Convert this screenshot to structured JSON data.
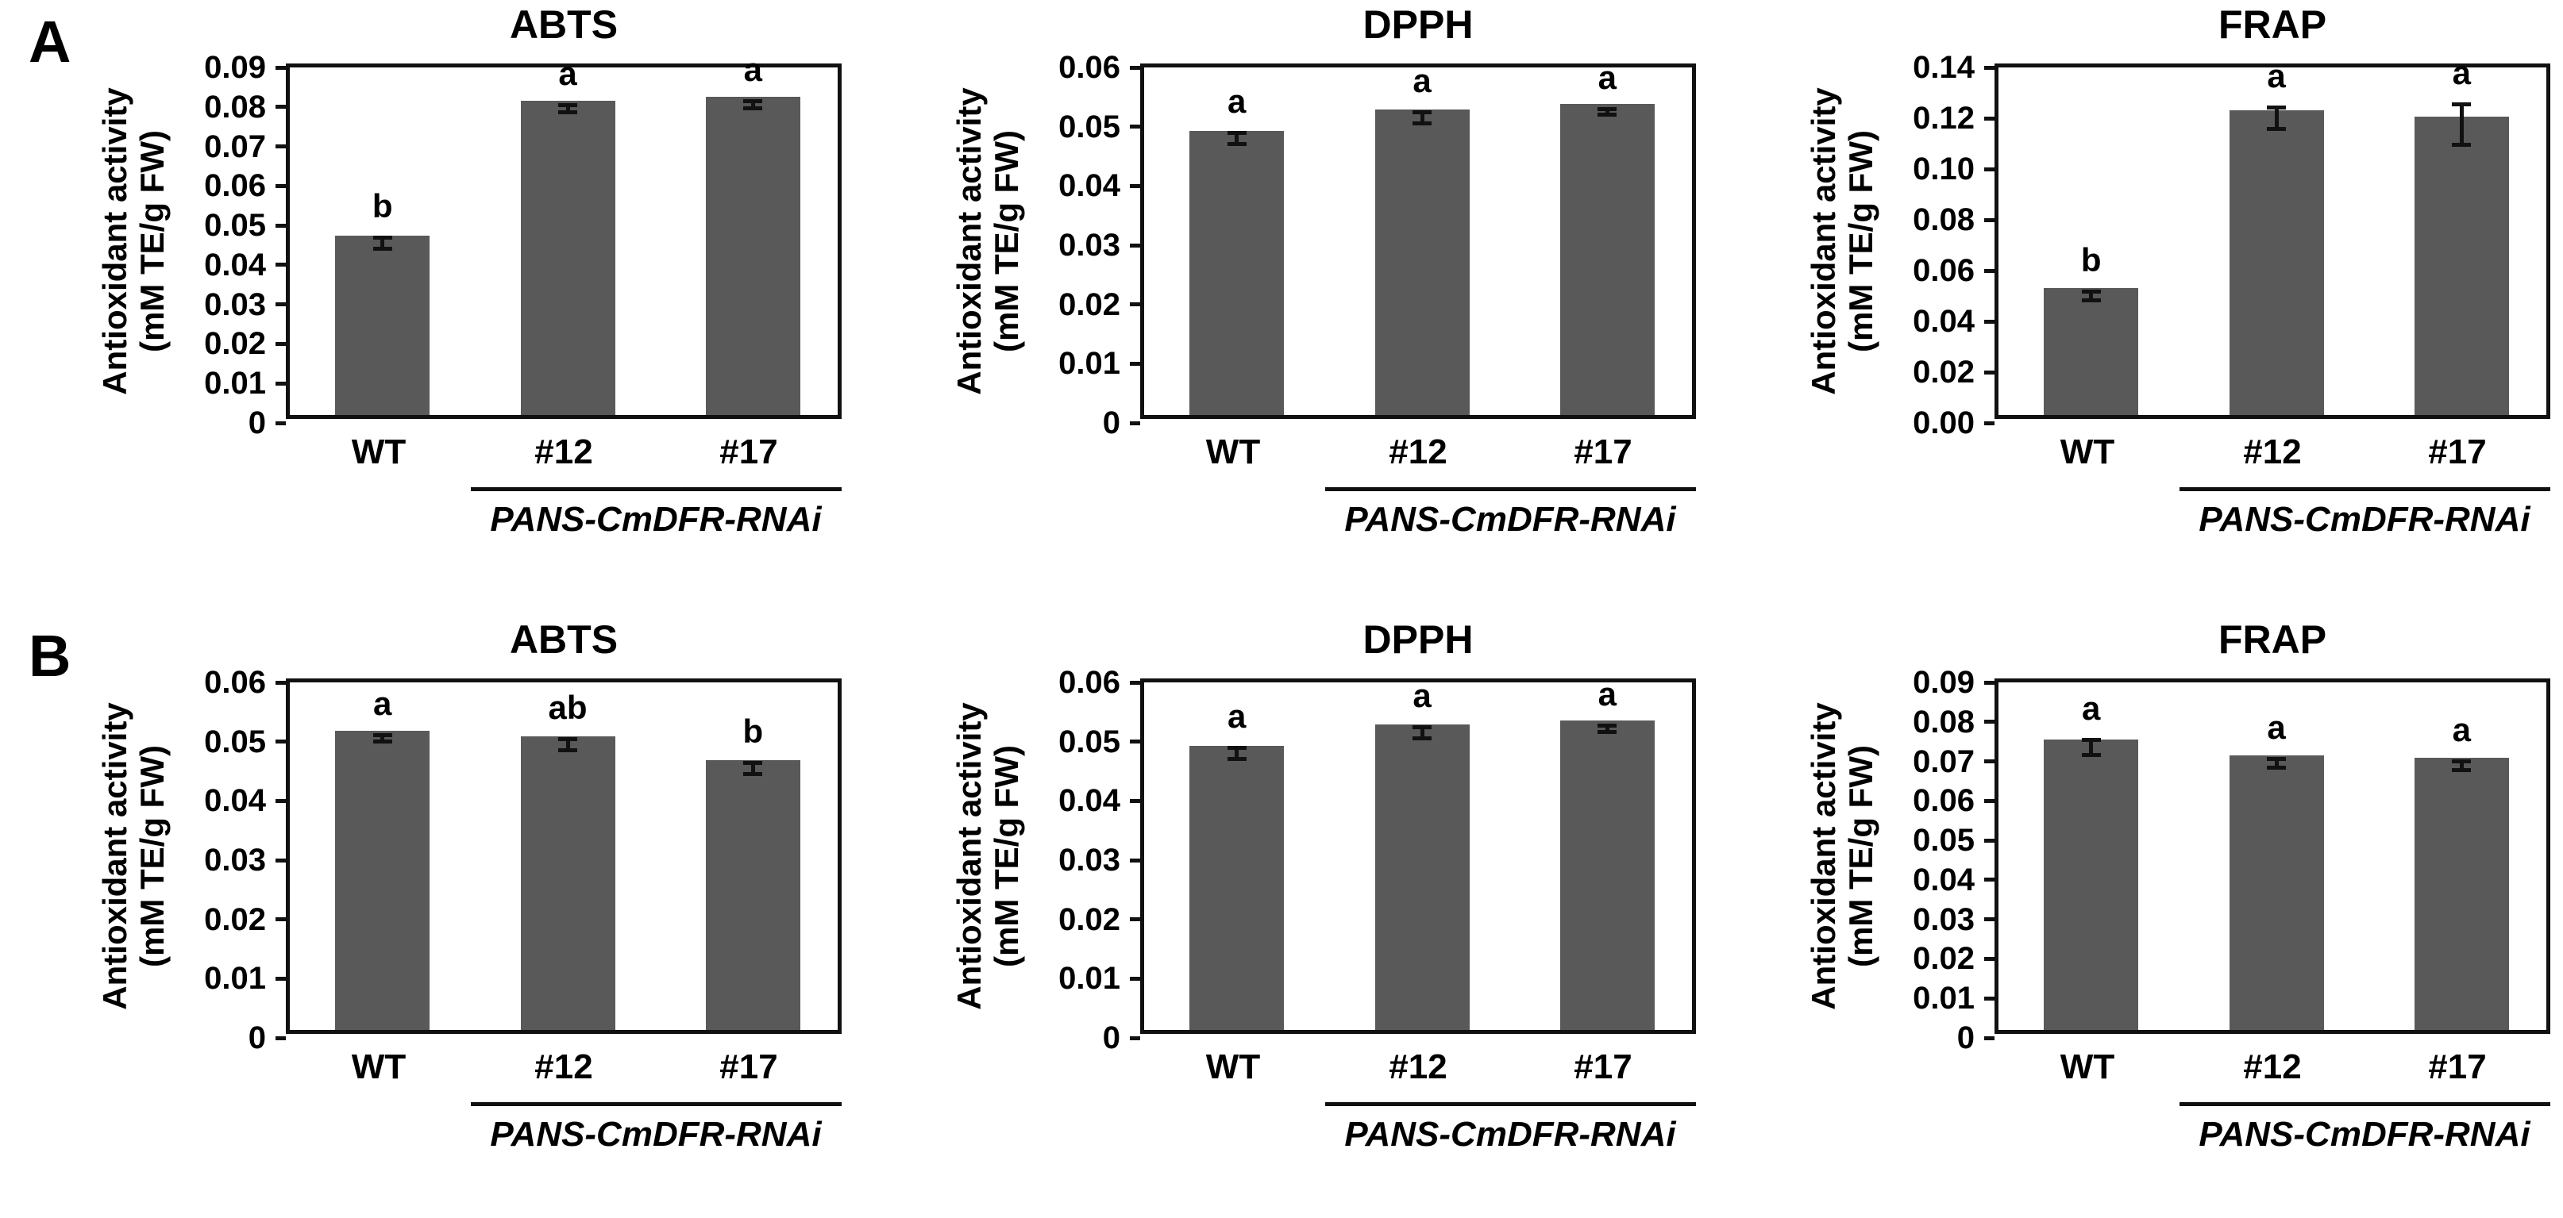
{
  "figure": {
    "panel_labels": [
      "A",
      "B"
    ],
    "bar_color": "#595959",
    "axis_color": "#111111",
    "text_color": "#000000",
    "background": "#ffffff"
  },
  "chart_data": [
    {
      "panel": "A",
      "type": "bar",
      "title": "ABTS",
      "ylabel_line1": "Antioxidant activity",
      "ylabel_line2": "(mM TE/g FW)",
      "categories": [
        "WT",
        "#12",
        "#17"
      ],
      "values": [
        0.0455,
        0.0795,
        0.0805
      ],
      "errors": [
        0.0015,
        0.001,
        0.001
      ],
      "sig_letters": [
        "b",
        "a",
        "a"
      ],
      "ylim": [
        0,
        0.09
      ],
      "ytick_values": [
        0,
        0.01,
        0.02,
        0.03,
        0.04,
        0.05,
        0.06,
        0.07,
        0.08,
        0.09
      ],
      "ytick_labels": [
        "0",
        "0.01",
        "0.02",
        "0.03",
        "0.04",
        "0.05",
        "0.06",
        "0.07",
        "0.08",
        "0.09"
      ],
      "group_label": "PANS-CmDFR-RNAi",
      "group_members": [
        "#12",
        "#17"
      ],
      "grid": false,
      "legend": false
    },
    {
      "panel": "A",
      "type": "bar",
      "title": "DPPH",
      "ylabel_line1": "Antioxidant activity",
      "ylabel_line2": "(mM TE/g FW)",
      "categories": [
        "WT",
        "#12",
        "#17"
      ],
      "values": [
        0.048,
        0.0515,
        0.0525
      ],
      "errors": [
        0.001,
        0.001,
        0.0006
      ],
      "sig_letters": [
        "a",
        "a",
        "a"
      ],
      "ylim": [
        0,
        0.06
      ],
      "ytick_values": [
        0,
        0.01,
        0.02,
        0.03,
        0.04,
        0.05,
        0.06
      ],
      "ytick_labels": [
        "0",
        "0.01",
        "0.02",
        "0.03",
        "0.04",
        "0.05",
        "0.06"
      ],
      "group_label": "PANS-CmDFR-RNAi",
      "group_members": [
        "#12",
        "#17"
      ],
      "grid": false,
      "legend": false
    },
    {
      "panel": "A",
      "type": "bar",
      "title": "FRAP",
      "ylabel_line1": "Antioxidant activity",
      "ylabel_line2": "(mM TE/g FW)",
      "categories": [
        "WT",
        "#12",
        "#17"
      ],
      "values": [
        0.05,
        0.12,
        0.1175
      ],
      "errors": [
        0.002,
        0.0045,
        0.008
      ],
      "sig_letters": [
        "b",
        "a",
        "a"
      ],
      "ylim": [
        0,
        0.14
      ],
      "ytick_values": [
        0,
        0.02,
        0.04,
        0.06,
        0.08,
        0.1,
        0.12,
        0.14
      ],
      "ytick_labels": [
        "0.00",
        "0.02",
        "0.04",
        "0.06",
        "0.08",
        "0.10",
        "0.12",
        "0.14"
      ],
      "group_label": "PANS-CmDFR-RNAi",
      "group_members": [
        "#12",
        "#17"
      ],
      "grid": false,
      "legend": false
    },
    {
      "panel": "B",
      "type": "bar",
      "title": "ABTS",
      "ylabel_line1": "Antioxidant activity",
      "ylabel_line2": "(mM TE/g FW)",
      "categories": [
        "WT",
        "#12",
        "#17"
      ],
      "values": [
        0.0505,
        0.0495,
        0.0455
      ],
      "errors": [
        0.0006,
        0.001,
        0.001
      ],
      "sig_letters": [
        "a",
        "ab",
        "b"
      ],
      "ylim": [
        0,
        0.06
      ],
      "ytick_values": [
        0,
        0.01,
        0.02,
        0.03,
        0.04,
        0.05,
        0.06
      ],
      "ytick_labels": [
        "0",
        "0.01",
        "0.02",
        "0.03",
        "0.04",
        "0.05",
        "0.06"
      ],
      "group_label": "PANS-CmDFR-RNAi",
      "group_members": [
        "#12",
        "#17"
      ],
      "grid": false,
      "legend": false
    },
    {
      "panel": "B",
      "type": "bar",
      "title": "DPPH",
      "ylabel_line1": "Antioxidant activity",
      "ylabel_line2": "(mM TE/g FW)",
      "categories": [
        "WT",
        "#12",
        "#17"
      ],
      "values": [
        0.048,
        0.0515,
        0.0522
      ],
      "errors": [
        0.001,
        0.001,
        0.0006
      ],
      "sig_letters": [
        "a",
        "a",
        "a"
      ],
      "ylim": [
        0,
        0.06
      ],
      "ytick_values": [
        0,
        0.01,
        0.02,
        0.03,
        0.04,
        0.05,
        0.06
      ],
      "ytick_labels": [
        "0",
        "0.01",
        "0.02",
        "0.03",
        "0.04",
        "0.05",
        "0.06"
      ],
      "group_label": "PANS-CmDFR-RNAi",
      "group_members": [
        "#12",
        "#17"
      ],
      "grid": false,
      "legend": false
    },
    {
      "panel": "B",
      "type": "bar",
      "title": "FRAP",
      "ylabel_line1": "Antioxidant activity",
      "ylabel_line2": "(mM TE/g FW)",
      "categories": [
        "WT",
        "#12",
        "#17"
      ],
      "values": [
        0.0735,
        0.0695,
        0.069
      ],
      "errors": [
        0.002,
        0.0012,
        0.0012
      ],
      "sig_letters": [
        "a",
        "a",
        "a"
      ],
      "ylim": [
        0,
        0.09
      ],
      "ytick_values": [
        0,
        0.01,
        0.02,
        0.03,
        0.04,
        0.05,
        0.06,
        0.07,
        0.08,
        0.09
      ],
      "ytick_labels": [
        "0",
        "0.01",
        "0.02",
        "0.03",
        "0.04",
        "0.05",
        "0.06",
        "0.07",
        "0.08",
        "0.09"
      ],
      "group_label": "PANS-CmDFR-RNAi",
      "group_members": [
        "#12",
        "#17"
      ],
      "grid": false,
      "legend": false
    }
  ]
}
